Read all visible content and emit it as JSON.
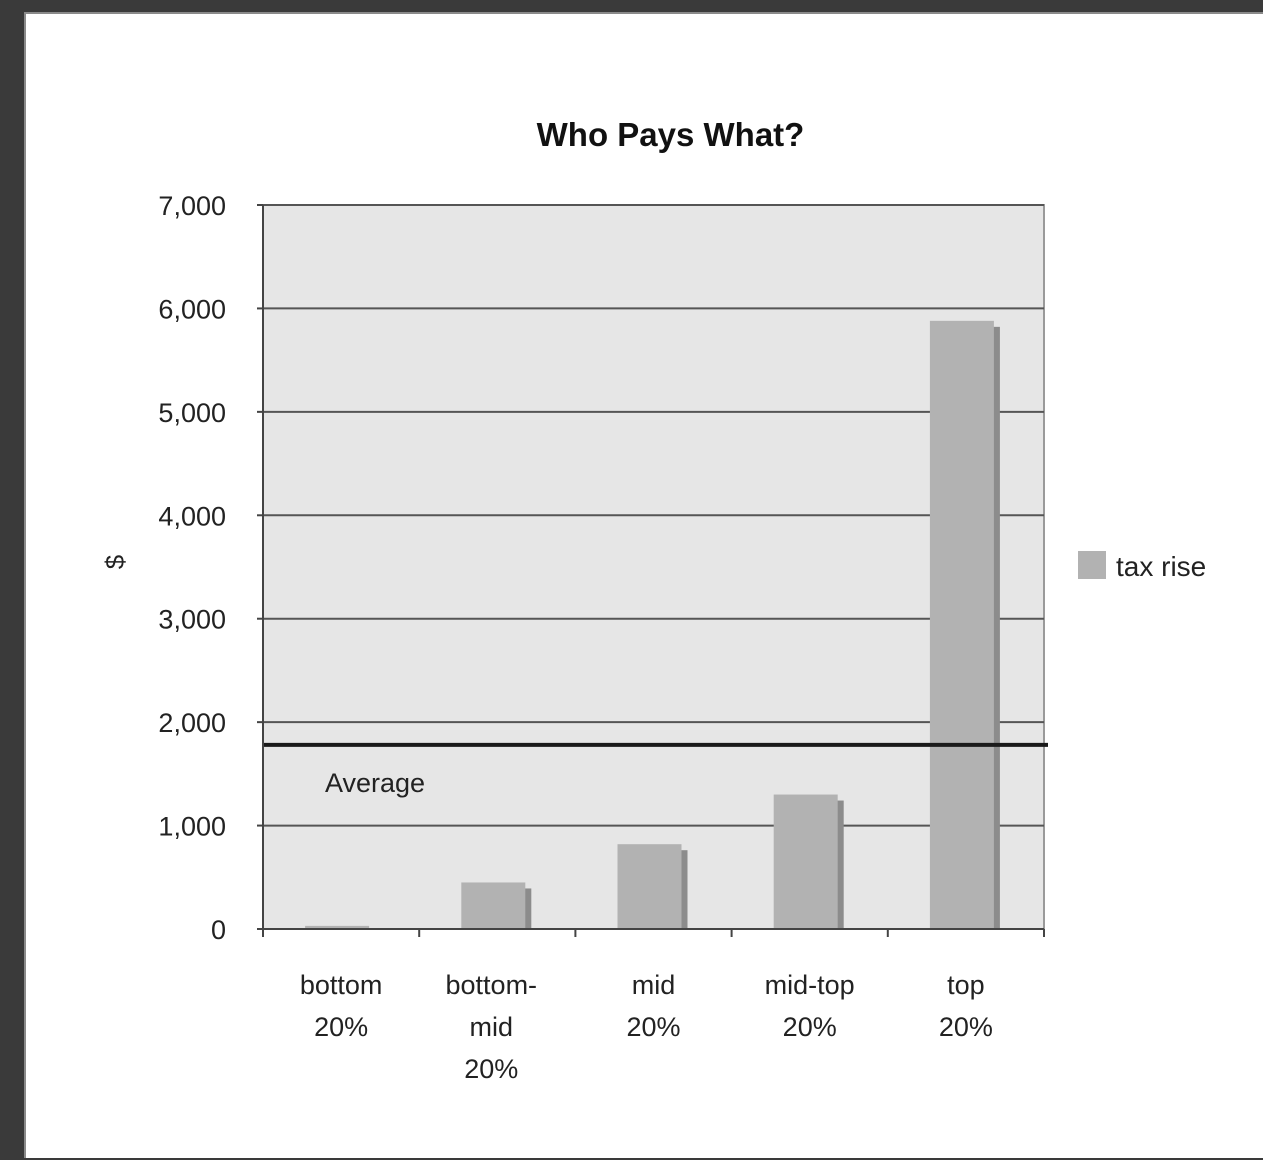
{
  "chart_data": {
    "type": "bar",
    "title": "Who Pays What?",
    "xlabel": "",
    "ylabel": "$",
    "ylim": [
      0,
      7000
    ],
    "yticks": [
      0,
      1000,
      2000,
      3000,
      4000,
      5000,
      6000,
      7000
    ],
    "ytick_labels": [
      "0",
      "1,000",
      "2,000",
      "3,000",
      "4,000",
      "5,000",
      "6,000",
      "7,000"
    ],
    "categories": [
      [
        "bottom",
        "20%"
      ],
      [
        "bottom-",
        "mid",
        "20%"
      ],
      [
        "mid",
        "20%"
      ],
      [
        "mid-top",
        "20%"
      ],
      [
        "top",
        "20%"
      ]
    ],
    "series": [
      {
        "name": "tax rise",
        "values": [
          30,
          450,
          820,
          1300,
          5880
        ]
      }
    ],
    "reference_line": {
      "label": "Average",
      "value": 1780
    },
    "grid": true,
    "legend_position": "right",
    "colors": {
      "plot_bg": "#e6e6e6",
      "bar": "#b2b2b2",
      "bar_shadow": "#8c8c8c",
      "grid": "#555555",
      "average_line": "#1a1a1a"
    }
  }
}
